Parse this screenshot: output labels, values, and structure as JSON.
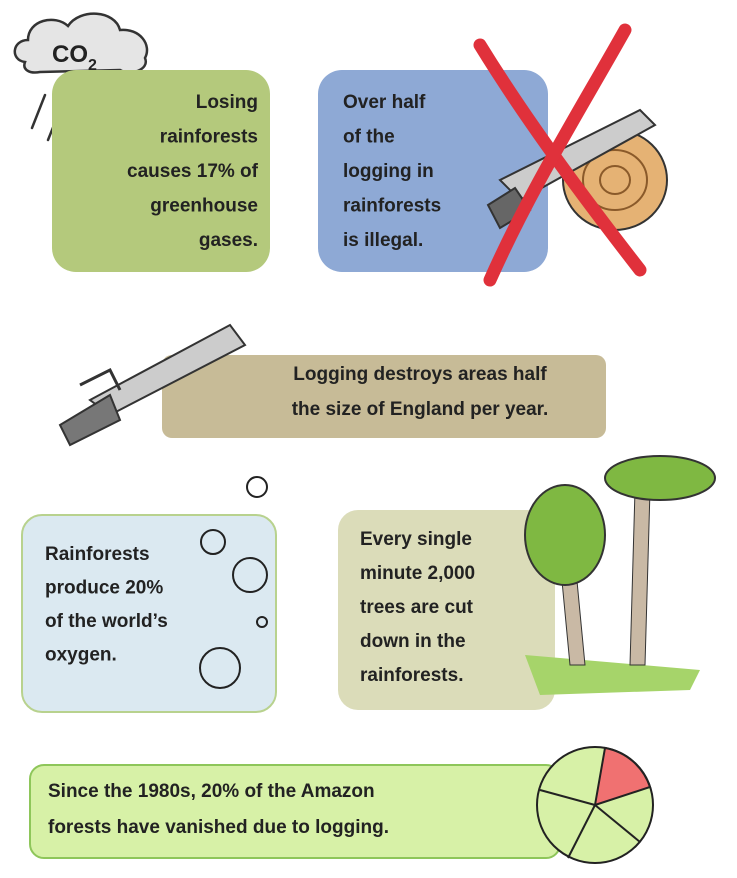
{
  "cloud": {
    "main": "CO",
    "sub": "2"
  },
  "facts": [
    {
      "lines": [
        "Losing",
        "rainforests",
        "causes 17% of",
        "greenhouse",
        "gases."
      ]
    },
    {
      "lines": [
        "Over half",
        "of the",
        "logging in",
        "rainforests",
        "is illegal."
      ]
    },
    {
      "lines": [
        "Logging destroys areas half",
        "the size of England per year."
      ]
    },
    {
      "lines": [
        "Rainforests",
        "produce 20%",
        "of the world’s",
        "oxygen."
      ]
    },
    {
      "lines": [
        "Every single",
        "minute 2,000",
        "trees are cut",
        "down in the",
        "rainforests."
      ]
    },
    {
      "lines": [
        "Since the 1980s, 20% of the Amazon",
        "forests have vanished due to logging."
      ]
    }
  ]
}
